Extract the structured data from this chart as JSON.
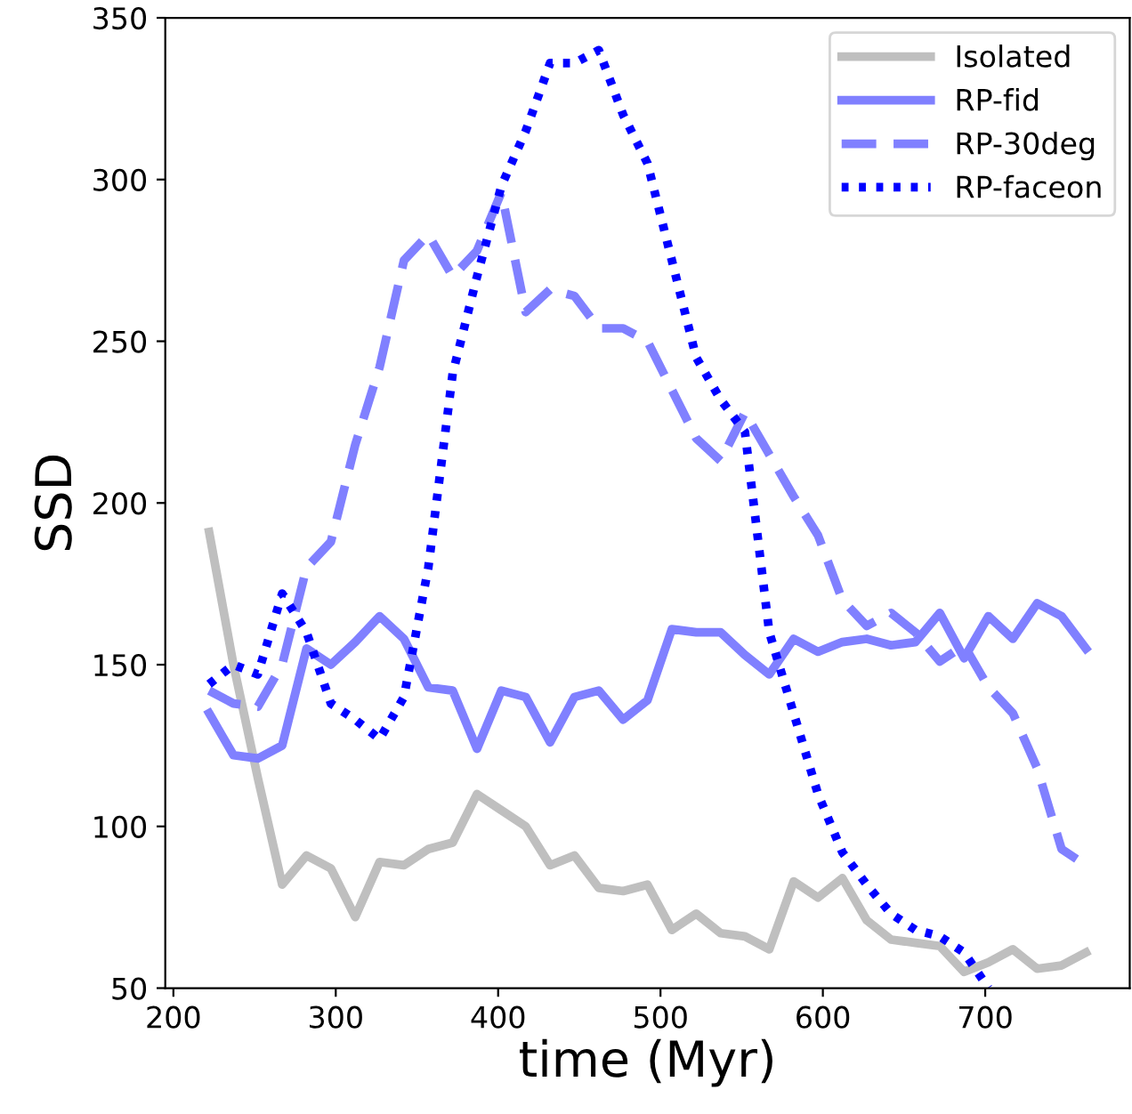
{
  "chart_data": {
    "type": "line",
    "xlabel": "time (Myr)",
    "ylabel": "SSD",
    "x": [
      222,
      237,
      252,
      267,
      282,
      297,
      312,
      327,
      342,
      357,
      372,
      387,
      402,
      417,
      432,
      447,
      462,
      477,
      492,
      507,
      522,
      537,
      552,
      567,
      582,
      597,
      612,
      627,
      642,
      657,
      672,
      687,
      702,
      717,
      732,
      747,
      762
    ],
    "series": [
      {
        "name": "Isolated",
        "color": "#bfbfbf",
        "line_style": "solid",
        "values": [
          191,
          150,
          115,
          82,
          91,
          87,
          72,
          89,
          88,
          93,
          95,
          110,
          105,
          100,
          88,
          91,
          81,
          80,
          82,
          68,
          73,
          67,
          66,
          62,
          83,
          78,
          84,
          71,
          65,
          64,
          63,
          55,
          58,
          62,
          56,
          57,
          61
        ]
      },
      {
        "name": "RP-fid",
        "color": "#8080ff",
        "line_style": "solid",
        "values": [
          135,
          122,
          121,
          125,
          155,
          150,
          157,
          165,
          158,
          143,
          142,
          124,
          142,
          140,
          126,
          140,
          142,
          133,
          139,
          161,
          160,
          160,
          153,
          147,
          158,
          154,
          157,
          158,
          156,
          157,
          166,
          152,
          165,
          158,
          169,
          165,
          155
        ]
      },
      {
        "name": "RP-30deg",
        "color": "#8080ff",
        "line_style": "dashed",
        "values": [
          142,
          138,
          137,
          150,
          180,
          188,
          218,
          242,
          275,
          283,
          270,
          278,
          296,
          259,
          266,
          264,
          254,
          254,
          250,
          235,
          220,
          213,
          228,
          215,
          202,
          190,
          170,
          162,
          166,
          160,
          151,
          156,
          143,
          135,
          118,
          93,
          88
        ]
      },
      {
        "name": "RP-faceon",
        "color": "#0000ff",
        "line_style": "dotted",
        "values": [
          144,
          150,
          147,
          172,
          160,
          138,
          133,
          127,
          140,
          180,
          240,
          270,
          298,
          315,
          336,
          336,
          340,
          320,
          305,
          275,
          245,
          232,
          222,
          160,
          135,
          110,
          92,
          82,
          73,
          68,
          66,
          61,
          50,
          null,
          null,
          null,
          null
        ]
      }
    ],
    "xlim": [
      195,
      789
    ],
    "ylim": [
      50,
      350
    ],
    "xticks": [
      200,
      300,
      400,
      500,
      600,
      700
    ],
    "yticks": [
      50,
      100,
      150,
      200,
      250,
      300,
      350
    ],
    "grid": false,
    "legend": "top right"
  }
}
